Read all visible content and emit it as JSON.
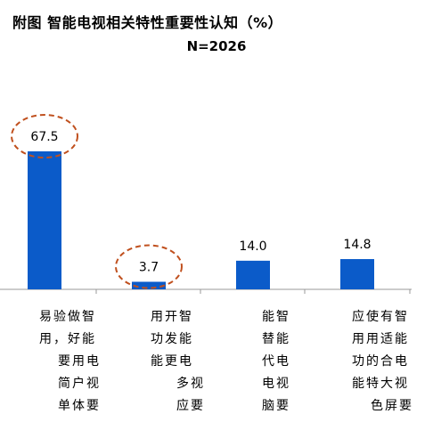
{
  "title": "附图  智能电视相关特性重要性认知（%）",
  "subtitle": "N=2026",
  "colors": {
    "bar": "#0b5bc9",
    "highlight_ellipse": "#c0501e",
    "axis": "#999999"
  },
  "chart_data": {
    "type": "bar",
    "title": "附图  智能电视相关特性重要性认知（%）",
    "subtitle": "N=2026",
    "categories": [
      [
        "易验做智",
        "用，好能",
        "要用电",
        "简户视",
        "单体要"
      ],
      [
        "用开智",
        "功发能",
        "能更电",
        "多视",
        "应要"
      ],
      [
        "能智",
        "替能",
        "代电",
        "电视",
        "脑要"
      ],
      [
        "应使有智",
        "用用适能",
        "功的合电",
        "能特大视",
        "色屏要"
      ]
    ],
    "values": [
      67.5,
      3.7,
      14.0,
      14.8
    ],
    "value_labels": [
      "67.5",
      "3.7",
      "14.0",
      "14.8"
    ],
    "highlighted": [
      true,
      true,
      false,
      false
    ],
    "ylim": [
      0,
      80
    ],
    "xlabel": "",
    "ylabel": "",
    "grid": false,
    "legend": "none"
  }
}
